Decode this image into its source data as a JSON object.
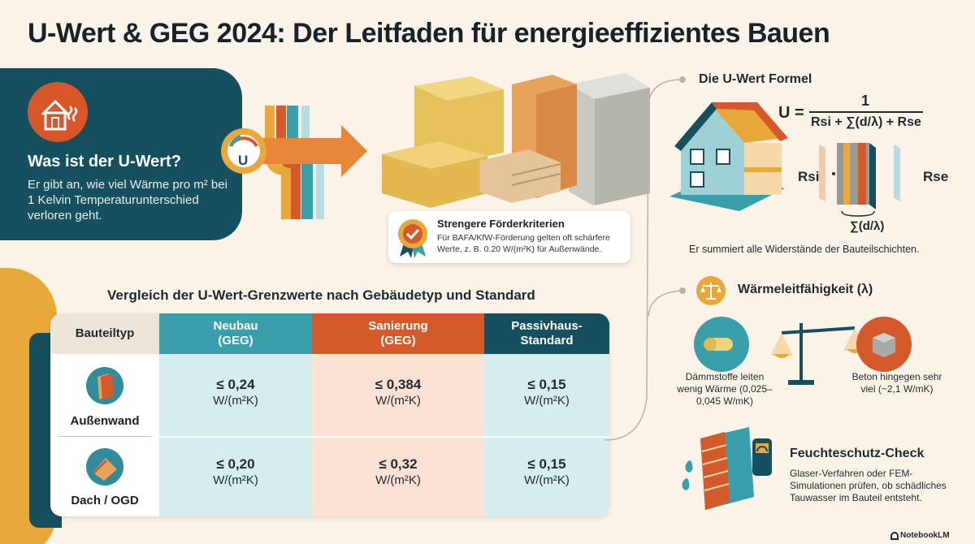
{
  "title": "U-Wert & GEG 2024: Der Leitfaden für energieeffizientes Bauen",
  "intro": {
    "heading": "Was ist der U-Wert?",
    "text": "Er gibt an, wie viel Wärme pro m² bei 1 Kelvin Temperatur­unterschied verloren geht.",
    "icon": "house-heat-icon",
    "gauge_letter": "U"
  },
  "foerder": {
    "heading": "Strengere Förderkriterien",
    "text": "Für BAFA/KfW-Förderung gelten oft schärfere Werte, z. B. 0.20 W/(m²K) für Außenwände.",
    "icon": "award-badge-icon"
  },
  "table": {
    "heading": "Vergleich der U-Wert-Grenzwerte nach Gebäudetyp und Standard",
    "headers": {
      "bauteil": "Bauteiltyp",
      "neubau": "Neubau (GEG)",
      "sanierung": "Sanierung (GEG)",
      "passiv": "Passivhaus-Standard"
    },
    "rows": [
      {
        "label": "Außenwand",
        "icon": "wall-panel-icon",
        "neubau": "≤ 0,24",
        "sanierung": "≤ 0,384",
        "passiv": "≤ 0,15",
        "unit": "W/(m²K)"
      },
      {
        "label": "Dach / OGD",
        "icon": "roof-icon",
        "neubau": "≤ 0,20",
        "sanierung": "≤ 0,32",
        "passiv": "≤ 0,15",
        "unit": "W/(m²K)"
      }
    ]
  },
  "formula": {
    "heading": "Die U-Wert Formel",
    "u": "U =",
    "numerator": "1",
    "denominator": "Rsi + ∑(d/λ) + Rse",
    "rsi": "Rsi",
    "rse": "Rse",
    "sum": "∑(d/λ)",
    "caption": "Er summiert alle Widerstände der Bauteilschichten."
  },
  "lambda": {
    "heading": "Wärmeleitfähigkeit (λ)",
    "icon": "scale-icon",
    "daemm_text": "Dämmstoffe leiten wenig Wärme (0,025–0,045 W/mK)",
    "beton_text": "Beton hingegen sehr viel (~2,1 W/mK)"
  },
  "feuchte": {
    "heading": "Feuchteschutz-Check",
    "text": "Glaser-Verfahren oder FEM-Simulationen prüfen, ob schädliches Tauwasser im Bauteil entsteht.",
    "icon": "moisture-meter-icon"
  },
  "branding": "NotebookLM",
  "colors": {
    "background": "#fbf3e8",
    "teal_dark": "#164f5e",
    "teal_light": "#3a9fab",
    "orange": "#d45a2b",
    "yellow": "#e8a83a"
  }
}
